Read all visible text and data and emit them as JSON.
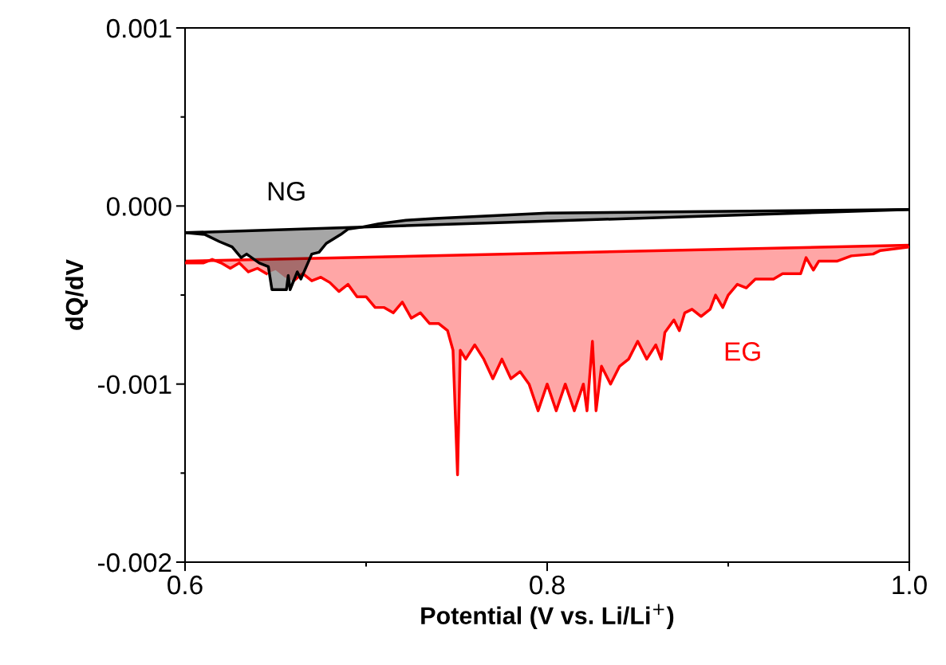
{
  "chart_data": {
    "type": "line",
    "xlabel": "Potential (V vs. Li/Li$^{+}$)",
    "ylabel": "dQ/dV",
    "xlim": [
      0.6,
      1.0
    ],
    "xticks": [
      {
        "value": 0.6,
        "label": "0.6"
      },
      {
        "value": 0.7,
        "label": null
      },
      {
        "value": 0.8,
        "label": "0.8"
      },
      {
        "value": 0.9,
        "label": null
      },
      {
        "value": 1.0,
        "label": "1.0"
      }
    ],
    "ylim": [
      -0.002,
      0.001
    ],
    "yticks": [
      {
        "value": -0.002,
        "label": "-0.002"
      },
      {
        "value": -0.0015,
        "label": null
      },
      {
        "value": -0.001,
        "label": "-0.001"
      },
      {
        "value": -0.0005,
        "label": null
      },
      {
        "value": 0,
        "label": "0.000"
      },
      {
        "value": 0.0005,
        "label": null
      },
      {
        "value": 0.001,
        "label": "0.001"
      }
    ],
    "grid": false,
    "legend": false,
    "marker": "none",
    "line_style": "solid",
    "series": [
      {
        "type": "line",
        "color": "#ff0000",
        "x": [
          0.6,
          1.0
        ],
        "values": [
          -0.00031,
          -0.00022
        ]
      },
      {
        "type": "line",
        "color": "#000000",
        "x": [
          0.6,
          1.0
        ],
        "values": [
          -0.00015,
          -2e-05
        ]
      },
      {
        "name": "EG",
        "color": "#ff0000",
        "x": [
          0.6,
          0.61,
          0.615,
          0.62,
          0.625,
          0.63,
          0.635,
          0.64,
          0.645,
          0.65,
          0.655,
          0.66,
          0.665,
          0.67,
          0.675,
          0.68,
          0.685,
          0.69,
          0.695,
          0.7,
          0.705,
          0.71,
          0.715,
          0.72,
          0.725,
          0.73,
          0.735,
          0.74,
          0.745,
          0.748,
          0.7505,
          0.752,
          0.755,
          0.76,
          0.765,
          0.77,
          0.775,
          0.78,
          0.785,
          0.79,
          0.795,
          0.8,
          0.805,
          0.81,
          0.815,
          0.82,
          0.822,
          0.825,
          0.827,
          0.83,
          0.835,
          0.84,
          0.845,
          0.85,
          0.855,
          0.86,
          0.863,
          0.865,
          0.87,
          0.873,
          0.876,
          0.88,
          0.885,
          0.89,
          0.893,
          0.897,
          0.9,
          0.905,
          0.91,
          0.915,
          0.925,
          0.93,
          0.94,
          0.943,
          0.947,
          0.95,
          0.96,
          0.968,
          0.98,
          0.984,
          1.0
        ],
        "values": [
          -0.00032,
          -0.00032,
          -0.0003,
          -0.00032,
          -0.00035,
          -0.00032,
          -0.00037,
          -0.00035,
          -0.00038,
          null,
          null,
          -0.00042,
          -0.00038,
          -0.00042,
          -0.0004,
          -0.00043,
          -0.00048,
          -0.00044,
          -0.00051,
          -0.00051,
          -0.00057,
          -0.00057,
          -0.0006,
          -0.00054,
          -0.00063,
          -0.0006,
          -0.00066,
          -0.00066,
          -0.0007,
          -0.00081,
          -0.00151,
          -0.00081,
          -0.00086,
          -0.00078,
          -0.00086,
          -0.00097,
          -0.00086,
          -0.00097,
          -0.00093,
          -0.001,
          -0.00115,
          -0.001,
          -0.00115,
          -0.001,
          -0.00115,
          -0.001,
          -0.00115,
          -0.00076,
          -0.00115,
          -0.0009,
          -0.001,
          -0.0009,
          -0.00086,
          -0.00076,
          -0.00086,
          -0.00078,
          -0.00086,
          -0.00071,
          -0.00064,
          -0.0007,
          -0.0006,
          -0.00058,
          -0.00062,
          -0.00058,
          -0.0005,
          -0.00057,
          -0.0005,
          -0.00044,
          -0.00046,
          -0.00041,
          -0.00041,
          -0.00038,
          -0.00038,
          -0.00029,
          -0.00036,
          -0.00031,
          -0.00031,
          -0.00028,
          -0.00027,
          -0.00025,
          -0.00023
        ],
        "lower": [
          -0.00032,
          -0.00032,
          -0.0003,
          -0.00032,
          -0.00035,
          -0.00032,
          -0.00037,
          -0.00035,
          -0.00038,
          -0.00036,
          -0.0004,
          -0.00042,
          -0.00038,
          -0.00042,
          -0.0004,
          -0.00043,
          -0.00048,
          -0.00044,
          -0.00051,
          -0.00051,
          -0.00057,
          -0.00057,
          -0.0006,
          -0.00054,
          -0.00063,
          -0.0006,
          -0.00066,
          -0.00066,
          -0.0007,
          -0.00081,
          -0.00151,
          -0.00081,
          -0.00086,
          -0.00078,
          -0.00086,
          -0.00097,
          -0.00086,
          -0.00097,
          -0.00093,
          -0.001,
          -0.00115,
          -0.001,
          -0.00115,
          -0.001,
          -0.00115,
          -0.001,
          -0.00115,
          -0.00076,
          -0.00115,
          -0.0009,
          -0.001,
          -0.0009,
          -0.00086,
          -0.00076,
          -0.00086,
          -0.00078,
          -0.00086,
          -0.00071,
          -0.00064,
          -0.0007,
          -0.0006,
          -0.00058,
          -0.00062,
          -0.00058,
          -0.0005,
          -0.00057,
          -0.0005,
          -0.00044,
          -0.00046,
          -0.00041,
          -0.00041,
          -0.00038,
          -0.00038,
          -0.00029,
          -0.00036,
          -0.00031,
          -0.00031,
          -0.00028,
          -0.00027,
          -0.00025,
          -0.00023
        ],
        "upper": [
          -0.00031,
          -0.00031,
          -0.00031,
          -0.00031,
          -0.0003,
          -0.0003,
          -0.0003,
          -0.0003,
          -0.0003,
          -0.0003,
          -0.0003,
          -0.0003,
          -0.00029,
          -0.00029,
          -0.00029,
          -0.00029,
          -0.00029,
          -0.00029,
          -0.00029,
          -0.00029,
          -0.00029,
          -0.00028,
          -0.00028,
          -0.00028,
          -0.00028,
          -0.00028,
          -0.00028,
          -0.00028,
          -0.00028,
          -0.00028,
          -0.00028,
          -0.00028,
          -0.00027,
          -0.00027,
          -0.00027,
          -0.00027,
          -0.00027,
          -0.00027,
          -0.00027,
          -0.00027,
          -0.00027,
          -0.00026,
          -0.00026,
          -0.00026,
          -0.00026,
          -0.00026,
          -0.00026,
          -0.00026,
          -0.00026,
          -0.00026,
          -0.00026,
          -0.00026,
          -0.00025,
          -0.00025,
          -0.00025,
          -0.00025,
          -0.00025,
          -0.00025,
          -0.00025,
          -0.00025,
          -0.00025,
          -0.00025,
          -0.00025,
          -0.00024,
          -0.00024,
          -0.00024,
          -0.00024,
          -0.00024,
          -0.00024,
          -0.00024,
          -0.00024,
          -0.00024,
          -0.00023,
          -0.00023,
          -0.00023,
          -0.00023,
          -0.00023,
          -0.00023,
          -0.00022,
          -0.00022,
          -0.00022
        ]
      },
      {
        "name": "NG",
        "color": "#000000",
        "x": [
          0.6,
          0.611,
          0.619,
          0.626,
          0.631,
          0.634,
          0.641,
          0.646,
          0.648,
          0.656,
          0.657,
          0.658,
          0.662,
          0.664,
          0.67,
          0.674,
          0.678,
          0.686,
          0.69,
          0.697,
          0.707,
          0.722,
          0.738,
          0.8,
          0.9,
          1.0
        ],
        "values": [
          -0.00015,
          -0.00016,
          -0.0002,
          -0.00023,
          -0.00029,
          -0.00027,
          -0.00032,
          -0.00034,
          -0.00047,
          -0.00047,
          -0.00039,
          -0.00047,
          -0.00037,
          -0.00041,
          -0.00027,
          -0.00026,
          -0.00021,
          -0.00016,
          -0.00013,
          -0.00012,
          -0.0001,
          -8e-05,
          -7e-05,
          -4e-05,
          -3e-05,
          -2e-05
        ],
        "lower": [
          -0.00015,
          -0.00016,
          -0.0002,
          -0.00023,
          -0.00029,
          -0.00027,
          -0.00032,
          -0.00034,
          -0.00047,
          -0.00047,
          -0.00039,
          -0.00047,
          -0.00037,
          -0.00041,
          -0.00027,
          -0.00026,
          -0.00021,
          -0.00016,
          -0.00013,
          -0.00012,
          -0.0001,
          -8e-05,
          -7e-05,
          -4e-05,
          -3e-05,
          -2e-05
        ],
        "upper": [
          -0.00015,
          -0.00015,
          -0.00014,
          -0.00014,
          -0.00014,
          -0.00014,
          -0.00014,
          -0.00013,
          -0.00013,
          -0.00013,
          -0.00013,
          -0.00013,
          -0.00013,
          -0.00013,
          -0.00013,
          -0.00013,
          -0.00012,
          -0.00012,
          -0.00012,
          -0.00012,
          -0.00011,
          -0.00011,
          -0.0001,
          -8e-05,
          -5e-05,
          -2e-05
        ]
      }
    ]
  }
}
